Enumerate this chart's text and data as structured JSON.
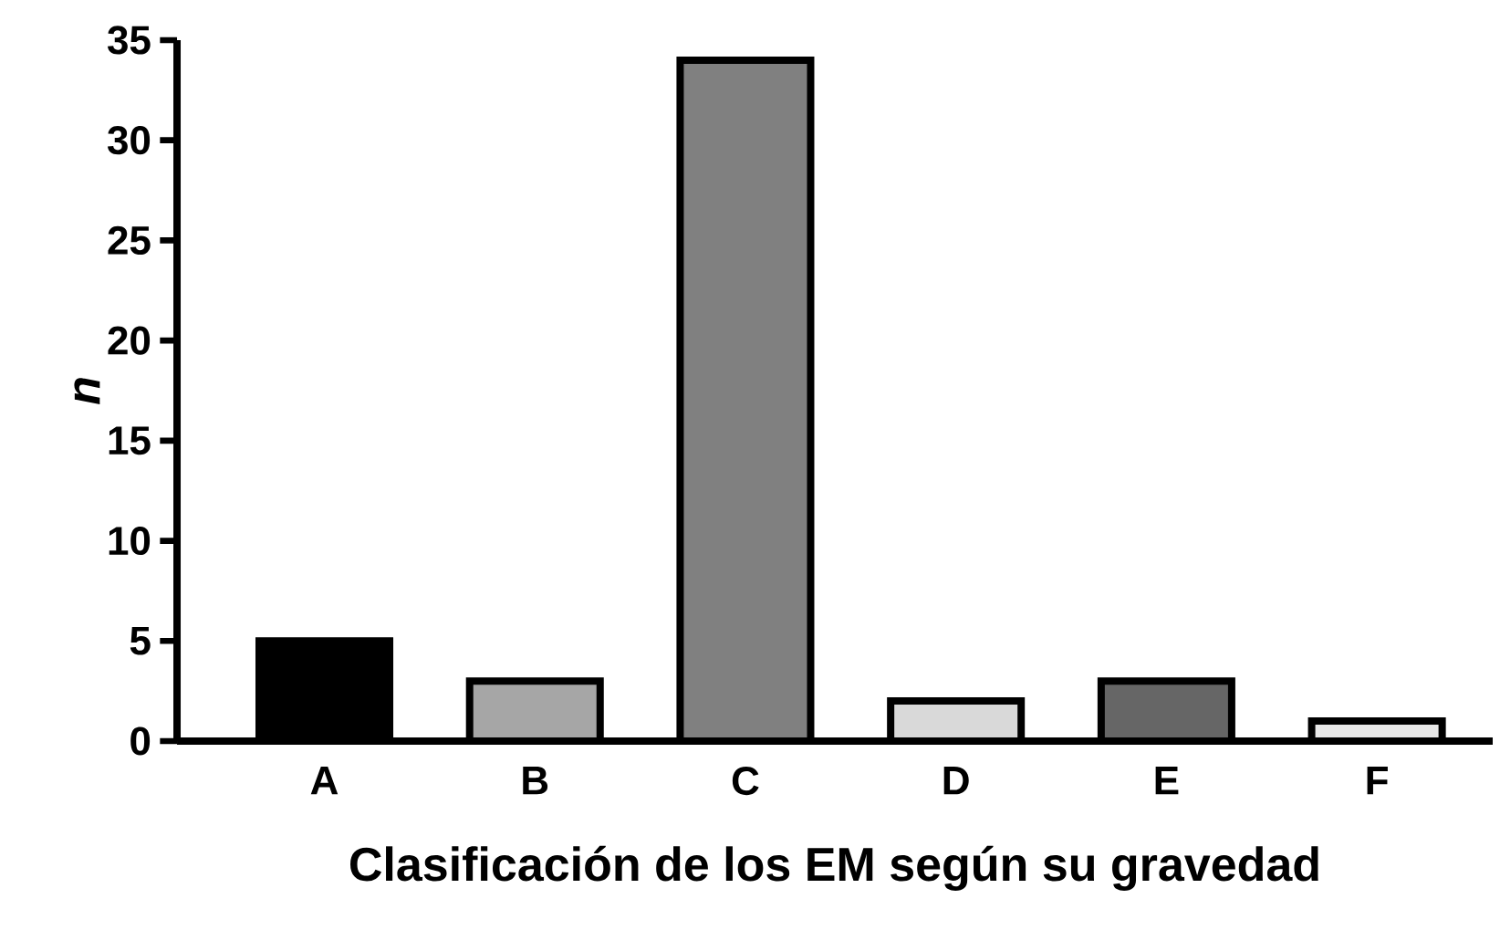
{
  "chart_data": {
    "type": "bar",
    "xlabel": "Clasificación de los EM según su gravedad",
    "ylabel": "n",
    "categories": [
      "A",
      "B",
      "C",
      "D",
      "E",
      "F"
    ],
    "values": [
      5,
      3,
      34,
      2,
      3,
      1
    ],
    "colors": [
      "#000000",
      "#a6a6a6",
      "#808080",
      "#d9d9d9",
      "#666666",
      "#e8e8e8"
    ],
    "ylim": [
      0,
      35
    ],
    "yticks": [
      0,
      5,
      10,
      15,
      20,
      25,
      30,
      35
    ]
  }
}
